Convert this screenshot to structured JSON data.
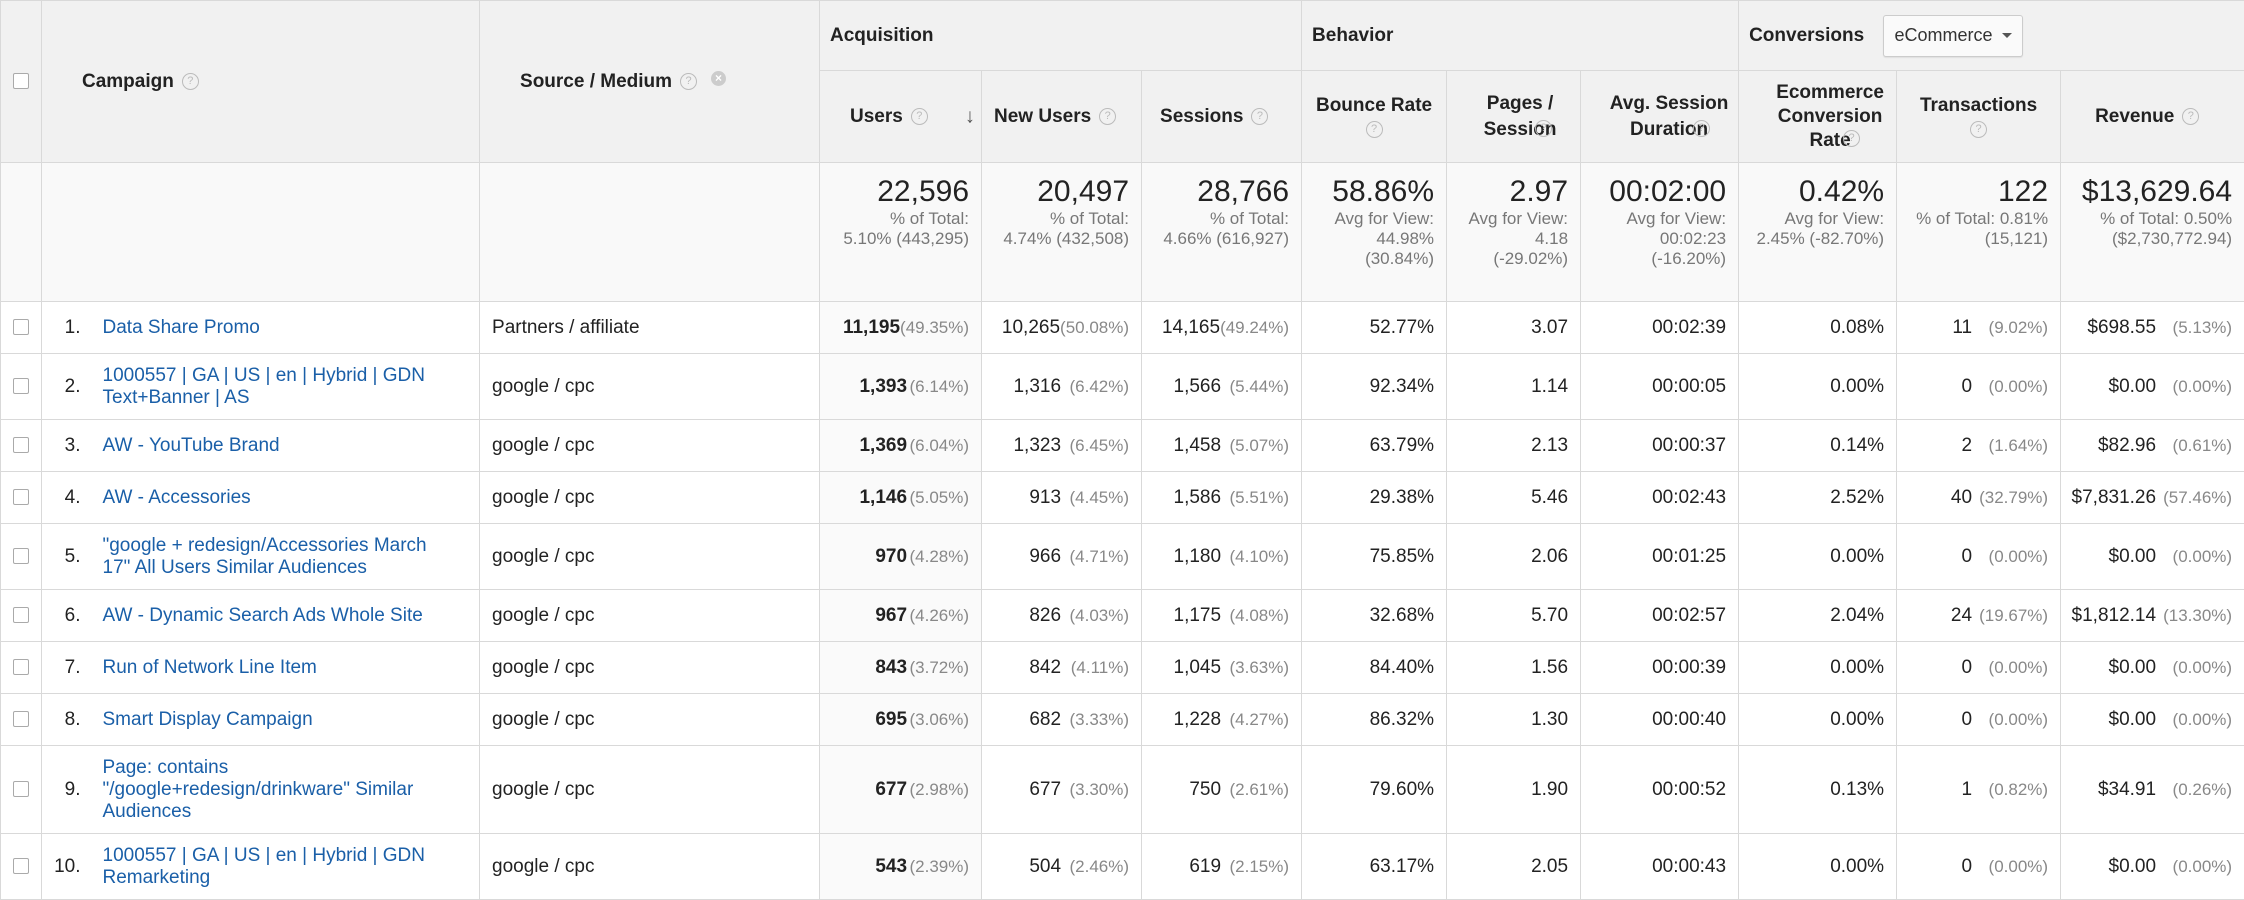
{
  "header": {
    "campaign": "Campaign",
    "source_medium": "Source / Medium",
    "acquisition": "Acquisition",
    "behavior": "Behavior",
    "conversions": "Conversions",
    "conversions_select": "eCommerce",
    "users": "Users",
    "new_users": "New Users",
    "sessions": "Sessions",
    "bounce_rate": "Bounce Rate",
    "pages_session": "Pages / Session",
    "avg_session_duration": "Avg. Session Duration",
    "ecommerce_conversion_rate": "Ecommerce Conversion Rate",
    "transactions": "Transactions",
    "revenue": "Revenue",
    "help": "?"
  },
  "totals": {
    "users": {
      "value": "22,596",
      "sub1": "% of Total:",
      "sub2": "5.10% (443,295)"
    },
    "new_users": {
      "value": "20,497",
      "sub1": "% of Total:",
      "sub2": "4.74% (432,508)"
    },
    "sessions": {
      "value": "28,766",
      "sub1": "% of Total:",
      "sub2": "4.66% (616,927)"
    },
    "bounce_rate": {
      "value": "58.86%",
      "sub1": "Avg for View:",
      "sub2": "44.98%",
      "sub3": "(30.84%)"
    },
    "pages_session": {
      "value": "2.97",
      "sub1": "Avg for View:",
      "sub2": "4.18",
      "sub3": "(-29.02%)"
    },
    "avg_session_duration": {
      "value": "00:02:00",
      "sub1": "Avg for View:",
      "sub2": "00:02:23",
      "sub3": "(-16.20%)"
    },
    "ecommerce_conversion_rate": {
      "value": "0.42%",
      "sub1": "Avg for View:",
      "sub2": "2.45% (-82.70%)"
    },
    "transactions": {
      "value": "122",
      "sub1": "% of Total: 0.81%",
      "sub2": "(15,121)"
    },
    "revenue": {
      "value": "$13,629.64",
      "sub1": "% of Total: 0.50%",
      "sub2": "($2,730,772.94)"
    }
  },
  "rows": [
    {
      "idx": "1.",
      "campaign": "Data Share Promo",
      "source": "Partners / affiliate",
      "users": "11,195",
      "users_pct": "(49.35%)",
      "new_users": "10,265",
      "new_users_pct": "(50.08%)",
      "sessions": "14,165",
      "sessions_pct": "(49.24%)",
      "bounce": "52.77%",
      "pages": "3.07",
      "duration": "00:02:39",
      "conv": "0.08%",
      "trans": "11",
      "trans_pct": "(9.02%)",
      "revenue": "$698.55",
      "revenue_pct": "(5.13%)"
    },
    {
      "idx": "2.",
      "campaign": "1000557 | GA | US | en | Hybrid | GDN Text+Banner | AS",
      "source": "google / cpc",
      "users": "1,393",
      "users_pct": "(6.14%)",
      "new_users": "1,316",
      "new_users_pct": "(6.42%)",
      "sessions": "1,566",
      "sessions_pct": "(5.44%)",
      "bounce": "92.34%",
      "pages": "1.14",
      "duration": "00:00:05",
      "conv": "0.00%",
      "trans": "0",
      "trans_pct": "(0.00%)",
      "revenue": "$0.00",
      "revenue_pct": "(0.00%)"
    },
    {
      "idx": "3.",
      "campaign": "AW - YouTube Brand",
      "source": "google / cpc",
      "users": "1,369",
      "users_pct": "(6.04%)",
      "new_users": "1,323",
      "new_users_pct": "(6.45%)",
      "sessions": "1,458",
      "sessions_pct": "(5.07%)",
      "bounce": "63.79%",
      "pages": "2.13",
      "duration": "00:00:37",
      "conv": "0.14%",
      "trans": "2",
      "trans_pct": "(1.64%)",
      "revenue": "$82.96",
      "revenue_pct": "(0.61%)"
    },
    {
      "idx": "4.",
      "campaign": "AW - Accessories",
      "source": "google / cpc",
      "users": "1,146",
      "users_pct": "(5.05%)",
      "new_users": "913",
      "new_users_pct": "(4.45%)",
      "sessions": "1,586",
      "sessions_pct": "(5.51%)",
      "bounce": "29.38%",
      "pages": "5.46",
      "duration": "00:02:43",
      "conv": "2.52%",
      "trans": "40",
      "trans_pct": "(32.79%)",
      "revenue": "$7,831.26",
      "revenue_pct": "(57.46%)"
    },
    {
      "idx": "5.",
      "campaign": "\"google + redesign/Accessories March 17\" All Users Similar Audiences",
      "source": "google / cpc",
      "users": "970",
      "users_pct": "(4.28%)",
      "new_users": "966",
      "new_users_pct": "(4.71%)",
      "sessions": "1,180",
      "sessions_pct": "(4.10%)",
      "bounce": "75.85%",
      "pages": "2.06",
      "duration": "00:01:25",
      "conv": "0.00%",
      "trans": "0",
      "trans_pct": "(0.00%)",
      "revenue": "$0.00",
      "revenue_pct": "(0.00%)"
    },
    {
      "idx": "6.",
      "campaign": "AW - Dynamic Search Ads Whole Site",
      "source": "google / cpc",
      "users": "967",
      "users_pct": "(4.26%)",
      "new_users": "826",
      "new_users_pct": "(4.03%)",
      "sessions": "1,175",
      "sessions_pct": "(4.08%)",
      "bounce": "32.68%",
      "pages": "5.70",
      "duration": "00:02:57",
      "conv": "2.04%",
      "trans": "24",
      "trans_pct": "(19.67%)",
      "revenue": "$1,812.14",
      "revenue_pct": "(13.30%)"
    },
    {
      "idx": "7.",
      "campaign": "Run of Network Line Item",
      "source": "google / cpc",
      "users": "843",
      "users_pct": "(3.72%)",
      "new_users": "842",
      "new_users_pct": "(4.11%)",
      "sessions": "1,045",
      "sessions_pct": "(3.63%)",
      "bounce": "84.40%",
      "pages": "1.56",
      "duration": "00:00:39",
      "conv": "0.00%",
      "trans": "0",
      "trans_pct": "(0.00%)",
      "revenue": "$0.00",
      "revenue_pct": "(0.00%)"
    },
    {
      "idx": "8.",
      "campaign": "Smart Display Campaign",
      "source": "google / cpc",
      "users": "695",
      "users_pct": "(3.06%)",
      "new_users": "682",
      "new_users_pct": "(3.33%)",
      "sessions": "1,228",
      "sessions_pct": "(4.27%)",
      "bounce": "86.32%",
      "pages": "1.30",
      "duration": "00:00:40",
      "conv": "0.00%",
      "trans": "0",
      "trans_pct": "(0.00%)",
      "revenue": "$0.00",
      "revenue_pct": "(0.00%)"
    },
    {
      "idx": "9.",
      "campaign": "Page: contains \"/google+redesign/drinkware\" Similar Audiences",
      "source": "google / cpc",
      "users": "677",
      "users_pct": "(2.98%)",
      "new_users": "677",
      "new_users_pct": "(3.30%)",
      "sessions": "750",
      "sessions_pct": "(2.61%)",
      "bounce": "79.60%",
      "pages": "1.90",
      "duration": "00:00:52",
      "conv": "0.13%",
      "trans": "1",
      "trans_pct": "(0.82%)",
      "revenue": "$34.91",
      "revenue_pct": "(0.26%)"
    },
    {
      "idx": "10.",
      "campaign": "1000557 | GA | US | en | Hybrid | GDN Remarketing",
      "source": "google / cpc",
      "users": "543",
      "users_pct": "(2.39%)",
      "new_users": "504",
      "new_users_pct": "(2.46%)",
      "sessions": "619",
      "sessions_pct": "(2.15%)",
      "bounce": "63.17%",
      "pages": "2.05",
      "duration": "00:00:43",
      "conv": "0.00%",
      "trans": "0",
      "trans_pct": "(0.00%)",
      "revenue": "$0.00",
      "revenue_pct": "(0.00%)"
    }
  ]
}
